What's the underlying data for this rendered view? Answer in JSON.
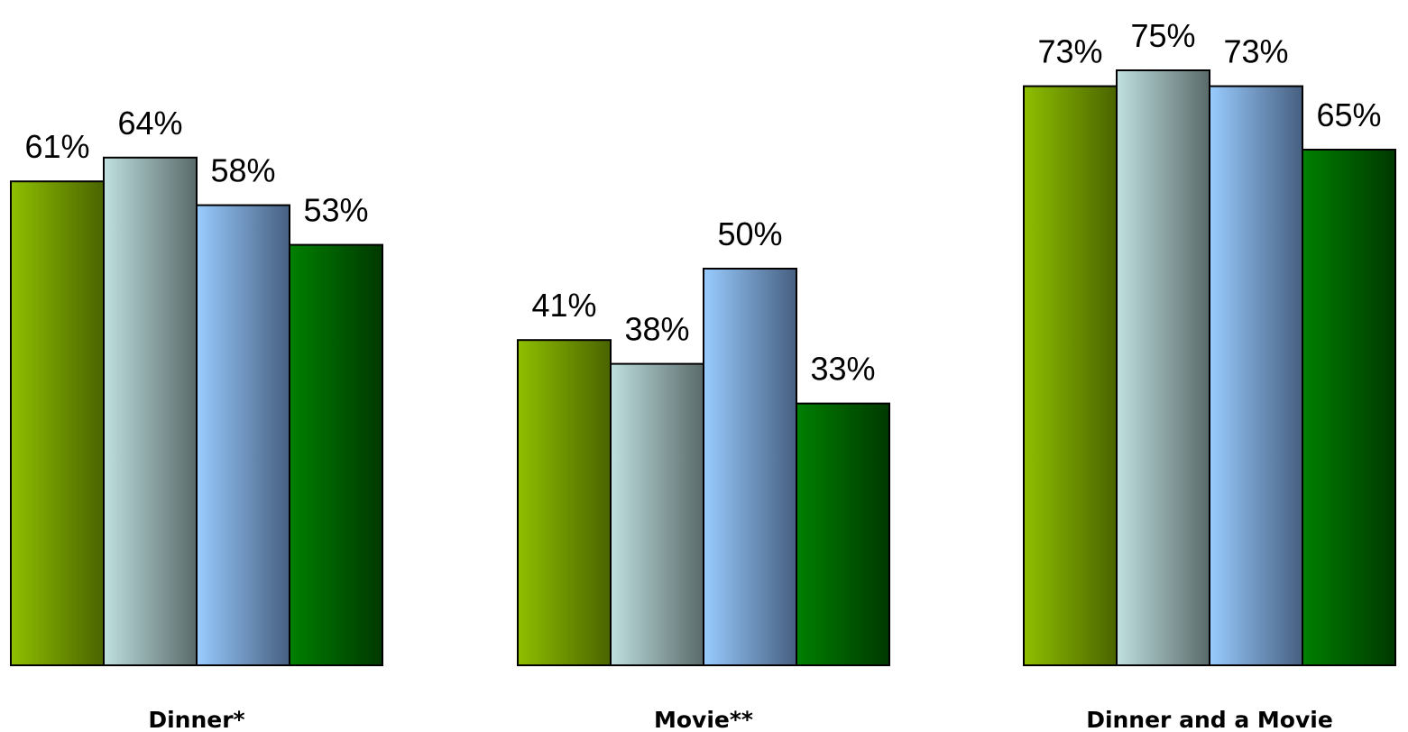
{
  "chart_data": {
    "type": "bar",
    "categories": [
      "Dinner*",
      "Movie**",
      "Dinner and a Movie"
    ],
    "series": [
      {
        "values": [
          61,
          41,
          73
        ],
        "color": "#8fbf00",
        "color_dark": "#4a6400"
      },
      {
        "values": [
          64,
          38,
          75
        ],
        "color": "#bfe0e0",
        "color_dark": "#5a6a6a"
      },
      {
        "values": [
          58,
          50,
          73
        ],
        "color": "#99ccff",
        "color_dark": "#465f80"
      },
      {
        "values": [
          53,
          33,
          65
        ],
        "color": "#008000",
        "color_dark": "#003800"
      }
    ],
    "data_labels": [
      [
        "61%",
        "41%",
        "73%"
      ],
      [
        "64%",
        "38%",
        "75%"
      ],
      [
        "58%",
        "50%",
        "73%"
      ],
      [
        "53%",
        "33%",
        "65%"
      ]
    ],
    "title": "",
    "xlabel": "",
    "ylabel": "",
    "ylim": [
      0,
      100
    ],
    "grid": false,
    "legend": "none"
  }
}
